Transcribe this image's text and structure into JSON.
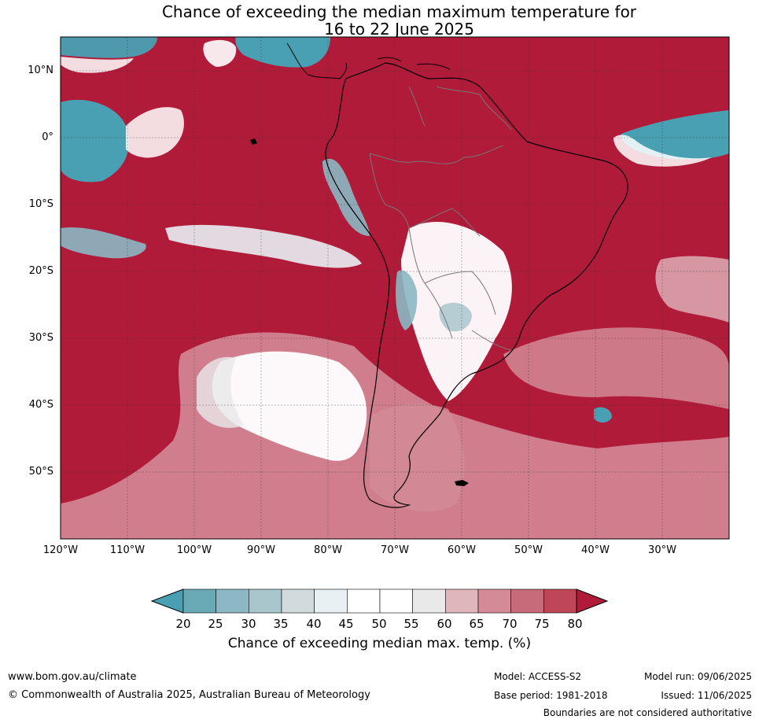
{
  "title": {
    "line1": "Chance of exceeding the median maximum temperature for",
    "line2": "16 to 22 June 2025"
  },
  "map": {
    "lat_labels": [
      "10°N",
      "0°",
      "10°S",
      "20°S",
      "30°S",
      "40°S",
      "50°S"
    ],
    "lon_labels": [
      "120°W",
      "110°W",
      "100°W",
      "90°W",
      "80°W",
      "70°W",
      "60°W",
      "50°W",
      "40°W",
      "30°W"
    ],
    "colors": {
      "high": "#b01b39",
      "mid_high": "#d48a97",
      "neutral": "#ffffff",
      "neutral_grey": "#e9e9ea",
      "low": "#4aa0b3",
      "mid_low": "#a9c6cd",
      "land_outline": "#000000",
      "borders": "#777777"
    }
  },
  "colorbar": {
    "ticks": [
      "20",
      "25",
      "30",
      "35",
      "40",
      "45",
      "50",
      "55",
      "60",
      "65",
      "70",
      "75",
      "80"
    ],
    "colors": [
      "#4aa0b3",
      "#6aa9b6",
      "#8bb8c4",
      "#a9c6cd",
      "#d1dbdd",
      "#e8f0f3",
      "#ffffff",
      "#ffffff",
      "#e9e9ea",
      "#e0b6bd",
      "#d48a97",
      "#c76a79",
      "#bf4657",
      "#b01b39"
    ],
    "label": "Chance of exceeding median max. temp. (%)"
  },
  "footer": {
    "website": "www.bom.gov.au/climate",
    "copyright": "© Commonwealth of Australia 2025, Australian Bureau of Meteorology",
    "model": "Model: ACCESS-S2",
    "base_period": "Base period: 1981-2018",
    "model_run": "Model run: 09/06/2025",
    "issued": "Issued: 11/06/2025",
    "disclaimer": "Boundaries are not considered authoritative"
  }
}
